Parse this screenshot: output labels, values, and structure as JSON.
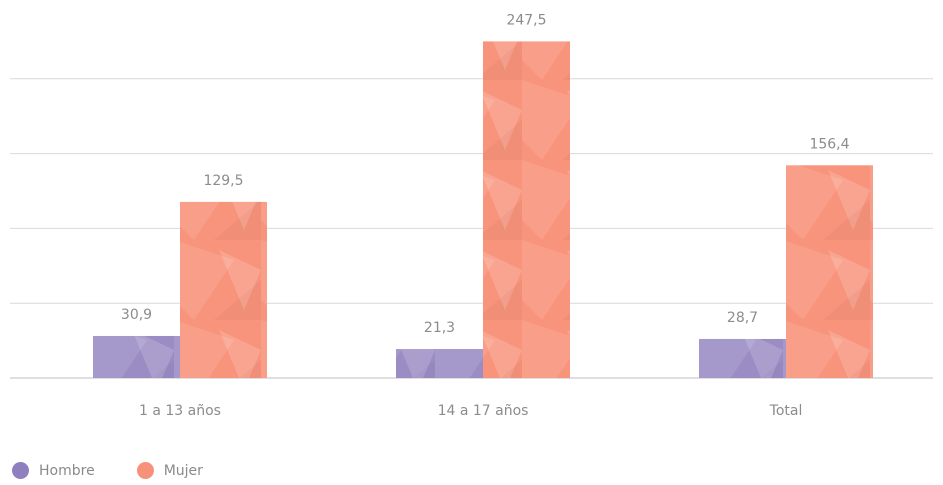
{
  "chart_data": {
    "type": "bar",
    "categories": [
      "1 a 13 años",
      "14 a 17 años",
      "Total"
    ],
    "series": [
      {
        "name": "Hombre",
        "values": [
          30.9,
          21.3,
          28.7
        ],
        "labels": [
          "30,9",
          "21,3",
          "28,7"
        ],
        "color": "#9b8cc4"
      },
      {
        "name": "Mujer",
        "values": [
          129.5,
          247.5,
          156.4
        ],
        "labels": [
          "129,5",
          "247,5",
          "156,4"
        ],
        "color": "#f8937c"
      }
    ],
    "ylim": [
      0,
      275
    ],
    "grid": true,
    "legend_position": "bottom-left"
  }
}
